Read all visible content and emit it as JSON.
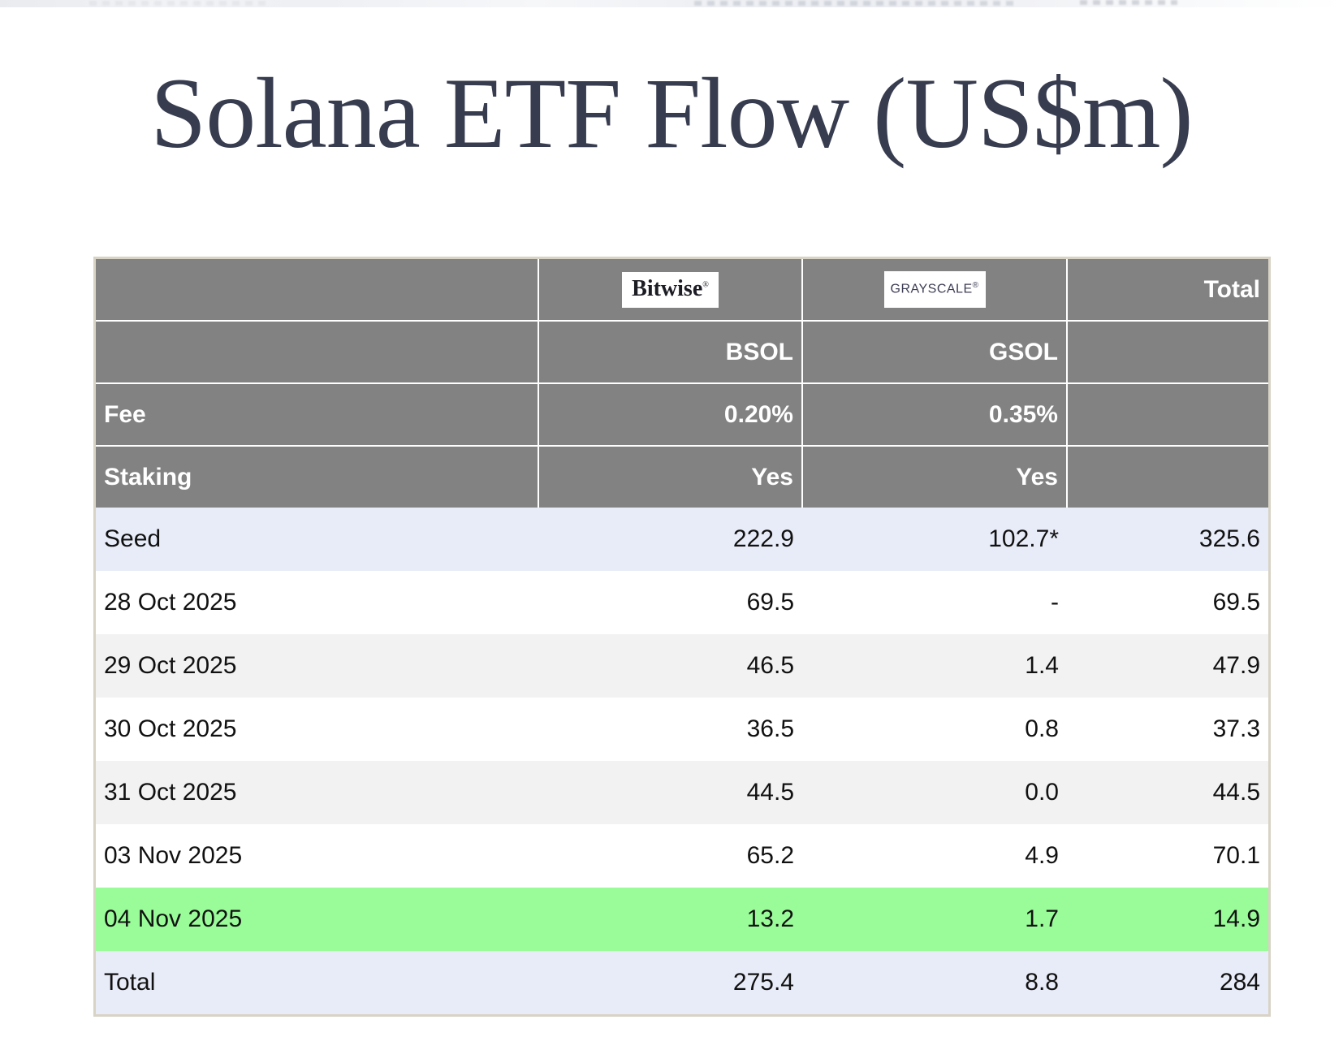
{
  "page": {
    "title": "Solana ETF Flow (US$m)"
  },
  "labels": {
    "fee": "Fee",
    "staking": "Staking",
    "total": "Total",
    "reg": "®"
  },
  "chart_data": {
    "type": "table",
    "title": "Solana ETF Flow (US$m)",
    "columns": [
      "",
      "Bitwise BSOL",
      "Grayscale GSOL",
      "Total"
    ],
    "providers": [
      {
        "brand": "Bitwise",
        "ticker": "BSOL",
        "fee": "0.20%",
        "staking": "Yes"
      },
      {
        "brand": "GRAYSCALE",
        "ticker": "GSOL",
        "fee": "0.35%",
        "staking": "Yes"
      }
    ],
    "rows": [
      {
        "label": "Seed",
        "bsol": "222.9",
        "gsol": "102.7*",
        "total": "325.6"
      },
      {
        "label": "28 Oct 2025",
        "bsol": "69.5",
        "gsol": "-",
        "total": "69.5"
      },
      {
        "label": "29 Oct 2025",
        "bsol": "46.5",
        "gsol": "1.4",
        "total": "47.9"
      },
      {
        "label": "30 Oct 2025",
        "bsol": "36.5",
        "gsol": "0.8",
        "total": "37.3"
      },
      {
        "label": "31 Oct 2025",
        "bsol": "44.5",
        "gsol": "0.0",
        "total": "44.5"
      },
      {
        "label": "03 Nov 2025",
        "bsol": "65.2",
        "gsol": "4.9",
        "total": "70.1"
      },
      {
        "label": "04 Nov 2025",
        "bsol": "13.2",
        "gsol": "1.7",
        "total": "14.9"
      },
      {
        "label": "Total",
        "bsol": "275.4",
        "gsol": "8.8",
        "total": "284"
      }
    ],
    "highlight_row": "04 Nov 2025",
    "colors": {
      "header_gray": "#828282",
      "row_lavender": "#e8ecf8",
      "row_alt_gray": "#f2f2f2",
      "row_highlight_green": "#99fc99",
      "table_border_tan": "#d9d3c6",
      "title_navy": "#373c4f"
    }
  }
}
